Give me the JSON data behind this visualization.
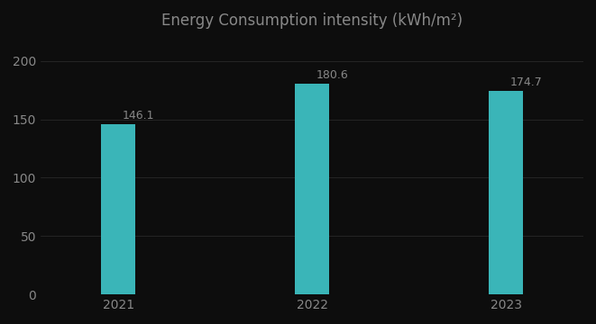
{
  "title": "Energy Consumption intensity (kWh/m²)",
  "categories": [
    "2021",
    "2022",
    "2023"
  ],
  "values": [
    146.1,
    180.6,
    174.7
  ],
  "bar_color": "#3ab5b8",
  "background_color": "#0d0d0d",
  "text_color": "#888888",
  "grid_color": "#444444",
  "ylim": [
    0,
    220
  ],
  "yticks": [
    0,
    50,
    100,
    150,
    200
  ],
  "bar_width": 0.18,
  "title_fontsize": 12,
  "tick_fontsize": 10,
  "value_fontsize": 9
}
